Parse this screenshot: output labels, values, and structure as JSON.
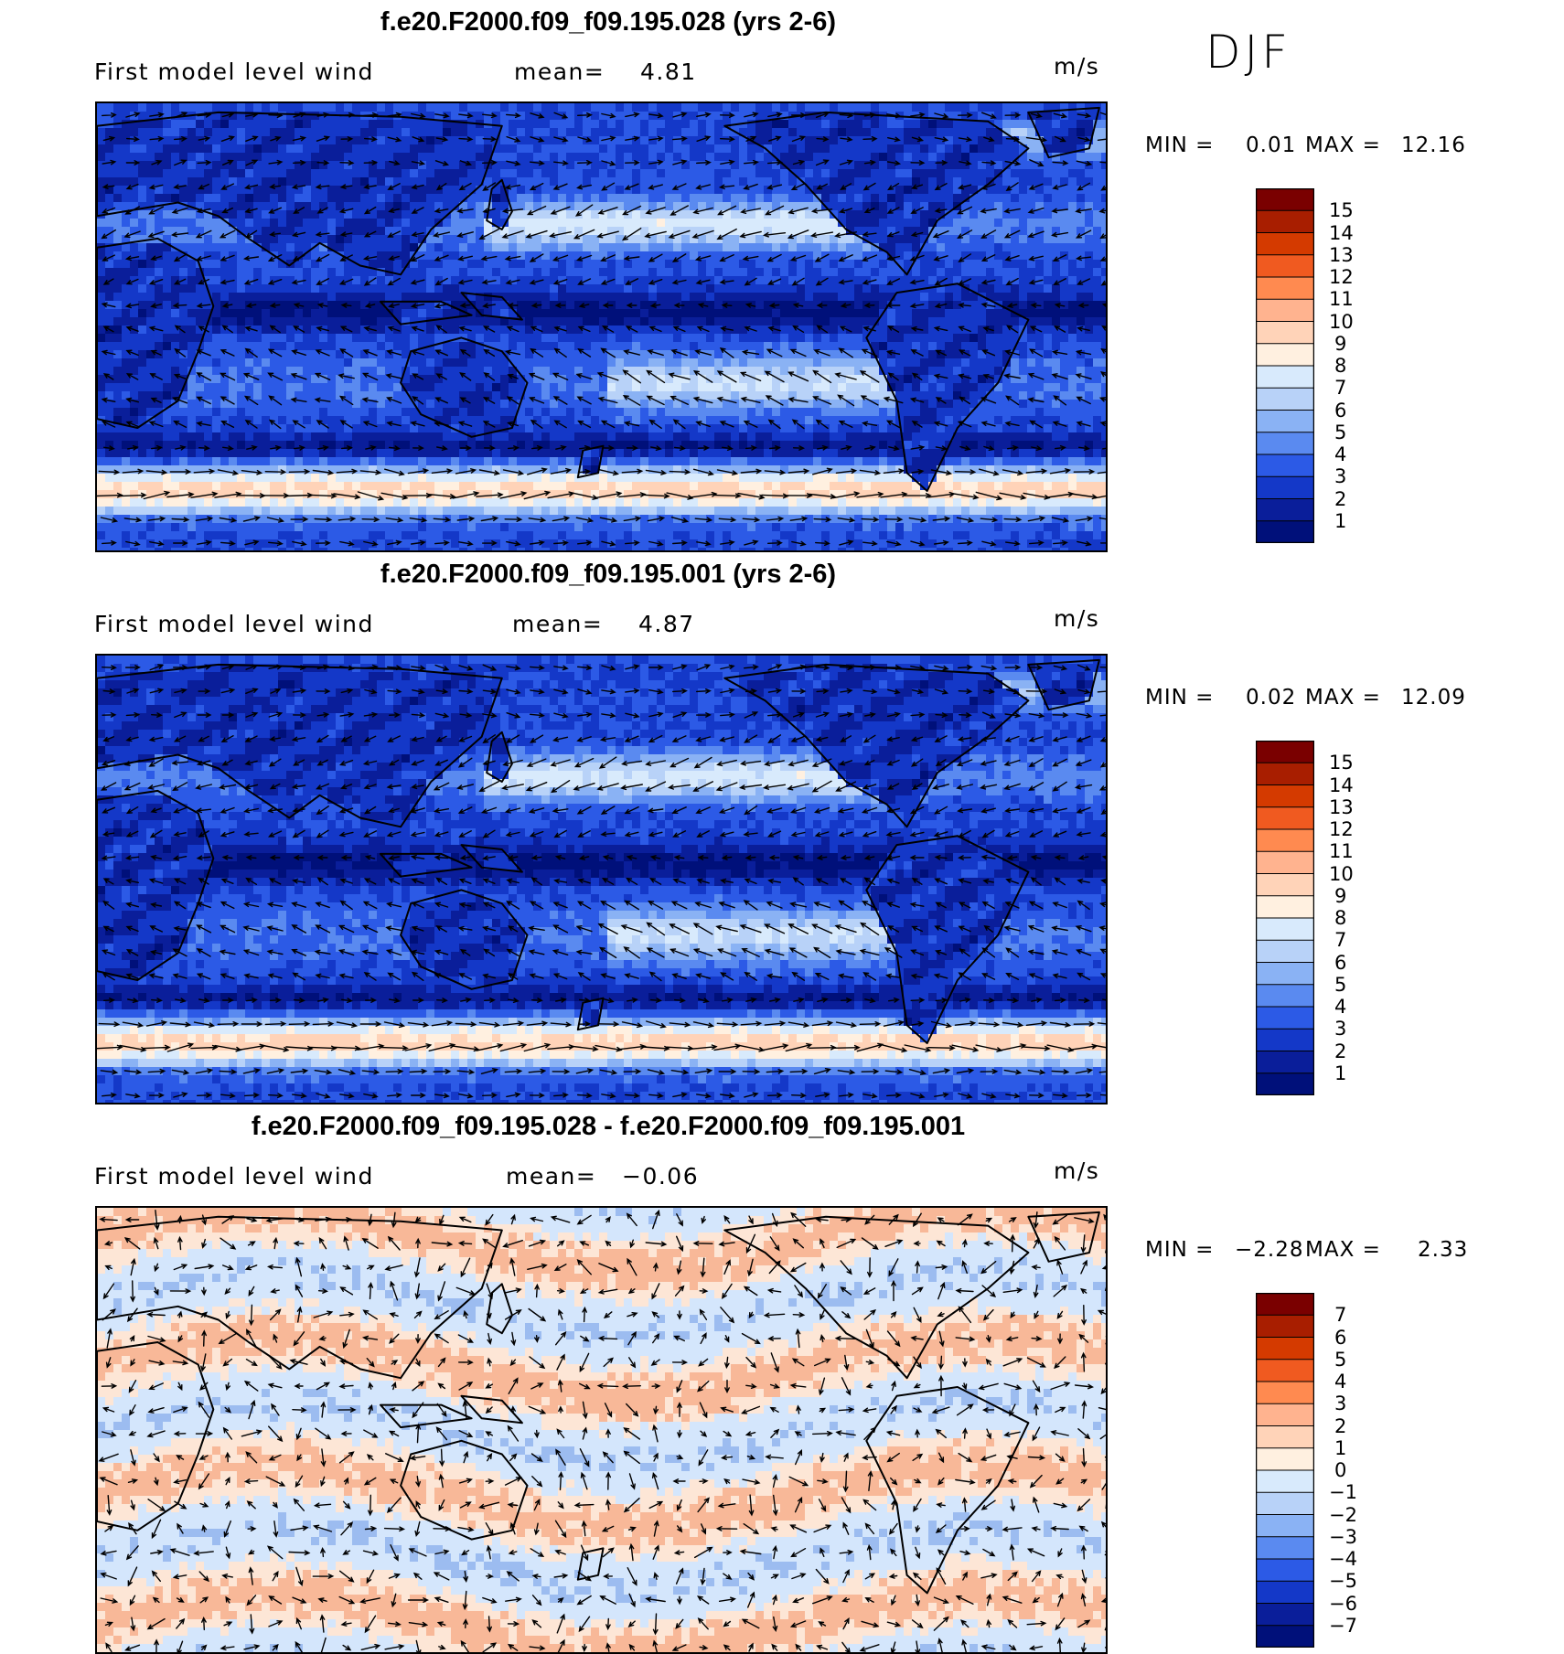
{
  "season": "DJF",
  "panels": [
    {
      "title": "f.e20.F2000.f09_f09.195.028 (yrs 2-6)",
      "label": "First model level wind",
      "mean_label": "mean=",
      "mean_value": "4.81",
      "units": "m/s",
      "min_label": "MIN =",
      "min_value": "0.01",
      "max_label": "MAX =",
      "max_value": "12.16",
      "colorbar_ticks": [
        "15",
        "14",
        "13",
        "12",
        "11",
        "10",
        "9",
        "8",
        "7",
        "6",
        "5",
        "4",
        "3",
        "2",
        "1"
      ],
      "map_type": "speed"
    },
    {
      "title": "f.e20.F2000.f09_f09.195.001 (yrs 2-6)",
      "label": "First model level wind",
      "mean_label": "mean=",
      "mean_value": "4.87",
      "units": "m/s",
      "min_label": "MIN =",
      "min_value": "0.02",
      "max_label": "MAX =",
      "max_value": "12.09",
      "colorbar_ticks": [
        "15",
        "14",
        "13",
        "12",
        "11",
        "10",
        "9",
        "8",
        "7",
        "6",
        "5",
        "4",
        "3",
        "2",
        "1"
      ],
      "map_type": "speed"
    },
    {
      "title": "f.e20.F2000.f09_f09.195.028 - f.e20.F2000.f09_f09.195.001",
      "label": "First model level wind",
      "mean_label": "mean=",
      "mean_value": "−0.06",
      "units": "m/s",
      "min_label": "MIN =",
      "min_value": "−2.28",
      "max_label": "MAX =",
      "max_value": "2.33",
      "colorbar_ticks": [
        "7",
        "6",
        "5",
        "4",
        "3",
        "2",
        "1",
        "0",
        "−1",
        "−2",
        "−3",
        "−4",
        "−5",
        "−6",
        "−7"
      ],
      "map_type": "diff"
    }
  ],
  "colors": {
    "colorbar": [
      "#7a0000",
      "#a81e00",
      "#d43a00",
      "#f05a20",
      "#ff8a50",
      "#ffb38f",
      "#ffd3b8",
      "#fff0e0",
      "#d8eafc",
      "#b8d2f8",
      "#8ab2f4",
      "#5a8af0",
      "#2c5ae6",
      "#1438c8",
      "#0a1e9a",
      "#00107a"
    ],
    "speed_low": "#0a2ad0",
    "speed_mid": "#8ab2f4",
    "speed_high": "#ffc8a8",
    "speed_peak": "#f07848",
    "diff_neg": "#d4e6fc",
    "diff_pos": "#fde6d6",
    "diff_strong_pos": "#f8b898",
    "diff_strong_neg": "#9cbcf0",
    "coast": "#000000",
    "arrow": "#000000"
  }
}
